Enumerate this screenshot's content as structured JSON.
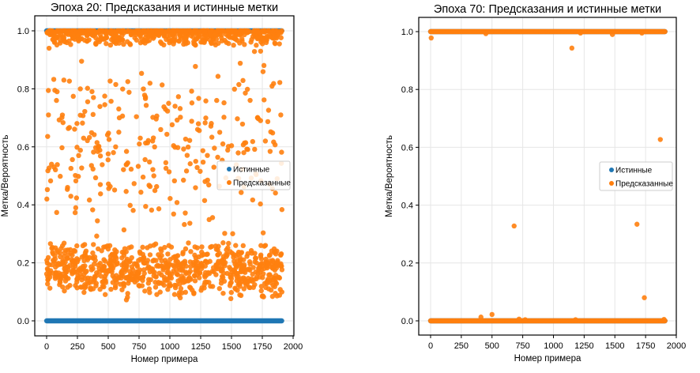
{
  "chart_data": [
    {
      "type": "scatter",
      "title": "Эпоха 20: Предсказания и истинные метки",
      "xlabel": "Номер примера",
      "ylabel": "Метка/Вероятность",
      "xlim": [
        -75,
        2000
      ],
      "ylim": [
        -0.05,
        1.05
      ],
      "xticks": [
        "0",
        "250",
        "500",
        "750",
        "1000",
        "1250",
        "1500",
        "1750",
        "2000"
      ],
      "yticks": [
        "0.0",
        "0.2",
        "0.4",
        "0.6",
        "0.8",
        "1.0"
      ],
      "grid": true,
      "legend": {
        "placement": "center-right",
        "entries": [
          "Истинные",
          "Предсказанные"
        ]
      },
      "n_samples": 1910,
      "series": [
        {
          "name": "Истинные",
          "color": "#1f77b4",
          "values_set": [
            0,
            1
          ]
        },
        {
          "name": "Предсказанные",
          "color": "#ff7f0e",
          "clusters": [
            {
              "range": [
                0.95,
                1.0
              ],
              "count": 700
            },
            {
              "range": [
                0.07,
                0.28
              ],
              "count": 800
            },
            {
              "range": [
                0.28,
                0.95
              ],
              "count": 260
            }
          ],
          "notable_points": [
            [
              2,
              0.42
            ],
            [
              15,
              0.71
            ],
            [
              20,
              0.94
            ],
            [
              40,
              0.54
            ],
            [
              60,
              0.53
            ],
            [
              80,
              0.76
            ],
            [
              85,
              0.79
            ],
            [
              170,
              0.46
            ],
            [
              260,
              0.57
            ],
            [
              300,
              0.63
            ],
            [
              380,
              0.77
            ],
            [
              560,
              0.6
            ],
            [
              590,
              0.7
            ],
            [
              650,
              0.54
            ],
            [
              760,
              0.63
            ],
            [
              860,
              0.62
            ],
            [
              870,
              0.5
            ],
            [
              990,
              0.75
            ],
            [
              1210,
              0.55
            ],
            [
              1225,
              0.66
            ],
            [
              1380,
              0.76
            ],
            [
              1430,
              0.61
            ],
            [
              1600,
              0.58
            ],
            [
              1775,
              0.62
            ],
            [
              1900,
              0.71
            ]
          ]
        }
      ]
    },
    {
      "type": "scatter",
      "title": "Эпоха 70: Предсказания и истинные метки",
      "xlabel": "Номер примера",
      "ylabel": "Метка/Вероятность",
      "xlim": [
        -75,
        2000
      ],
      "ylim": [
        -0.05,
        1.05
      ],
      "xticks": [
        "0",
        "250",
        "500",
        "750",
        "1000",
        "1250",
        "1500",
        "1750",
        "2000"
      ],
      "yticks": [
        "0.0",
        "0.2",
        "0.4",
        "0.6",
        "0.8",
        "1.0"
      ],
      "grid": true,
      "legend": {
        "placement": "center-right",
        "entries": [
          "Истинные",
          "Предсказанные"
        ]
      },
      "n_samples": 1910,
      "series": [
        {
          "name": "Истинные",
          "color": "#1f77b4",
          "values_set": [
            0,
            1
          ]
        },
        {
          "name": "Предсказанные",
          "color": "#ff7f0e",
          "notable_points": [
            [
              5,
              0.978
            ],
            [
              450,
              0.993
            ],
            [
              1150,
              0.943
            ],
            [
              1220,
              0.995
            ],
            [
              1480,
              0.99
            ],
            [
              1720,
              0.995
            ],
            [
              680,
              0.328
            ],
            [
              1680,
              0.334
            ],
            [
              1740,
              0.08
            ],
            [
              1870,
              0.627
            ],
            [
              410,
              0.013
            ],
            [
              500,
              0.022
            ],
            [
              720,
              0.006
            ],
            [
              770,
              0.004
            ],
            [
              1180,
              0.004
            ],
            [
              1900,
              0.005
            ]
          ]
        }
      ]
    }
  ]
}
